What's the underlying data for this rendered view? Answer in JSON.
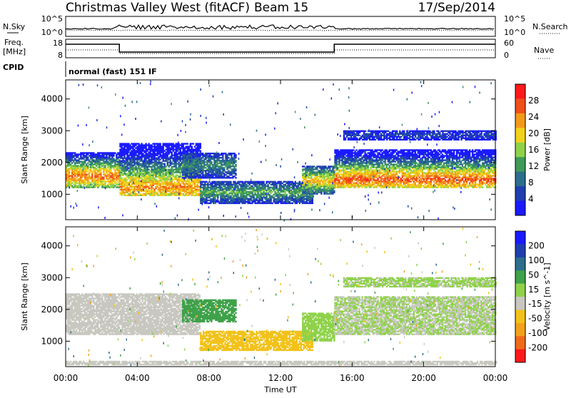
{
  "header": {
    "station": "Christmas Valley West (fitACF)",
    "beam": "Beam 15",
    "date": "17/Sep/2014"
  },
  "summary_panel": {
    "nsky_label": "N.Sky",
    "nsearch_label": "N.Search",
    "nsky_ticks": [
      "10^5",
      "10^0"
    ],
    "nsearch_ticks": [
      "10^5",
      "10^0"
    ],
    "freq_label": "Freq.",
    "freq_unit": "[MHz]",
    "freq_ticks": [
      "18",
      "8"
    ],
    "nave_label": "Nave",
    "nave_ticks": [
      "60",
      "0"
    ],
    "cpid_label": "CPID",
    "cpid_value": "normal (fast) 151 IF"
  },
  "colors": {
    "power_scale": [
      "#1a1aff",
      "#1f3fb0",
      "#2c6e8c",
      "#3f9a5a",
      "#8fd24a",
      "#f2d21a",
      "#f29a1a",
      "#f0501a",
      "#ff1a1a"
    ],
    "velocity_scale": [
      "#1a1aff",
      "#1f3fb0",
      "#2c6e8c",
      "#3fa24a",
      "#8fd24a",
      "#c8c8c0",
      "#f2c21a",
      "#f2a21a",
      "#f06a1a",
      "#ff1a1a"
    ],
    "line": "#000000"
  },
  "chart_data": [
    {
      "type": "heatmap",
      "panel": "power",
      "xlabel": "Time UT",
      "ylabel": "Slant Range [km]",
      "x_ticks": [
        "00:00",
        "04:00",
        "08:00",
        "12:00",
        "16:00",
        "20:00",
        "00:00"
      ],
      "y_ticks": [
        "1000",
        "2000",
        "3000",
        "4000"
      ],
      "xlim": [
        0,
        24
      ],
      "ylim": [
        200,
        4600
      ],
      "colorbar": {
        "label": "Power [dB]",
        "ticks": [
          "28",
          "24",
          "20",
          "16",
          "12",
          "8",
          "4"
        ],
        "range": [
          0,
          32
        ]
      },
      "bands": [
        {
          "t_start": 0.0,
          "t_end": 3.0,
          "r_low": 1200,
          "r_high": 2300,
          "peak_r": 1550,
          "level": 26
        },
        {
          "t_start": 3.0,
          "t_end": 7.5,
          "r_low": 950,
          "r_high": 2600,
          "peak_r": 1200,
          "level": 24
        },
        {
          "t_start": 6.5,
          "t_end": 9.5,
          "r_low": 1500,
          "r_high": 2300,
          "peak_r": 1900,
          "level": 12
        },
        {
          "t_start": 7.5,
          "t_end": 13.8,
          "r_low": 700,
          "r_high": 1400,
          "peak_r": 1050,
          "level": 14
        },
        {
          "t_start": 13.2,
          "t_end": 15.0,
          "r_low": 1000,
          "r_high": 1900,
          "peak_r": 1400,
          "level": 22
        },
        {
          "t_start": 15.0,
          "t_end": 24.0,
          "r_low": 1200,
          "r_high": 2400,
          "peak_r": 1450,
          "level": 27
        },
        {
          "t_start": 15.5,
          "t_end": 24.0,
          "r_low": 2700,
          "r_high": 3000,
          "peak_r": 2850,
          "level": 6
        }
      ]
    },
    {
      "type": "heatmap",
      "panel": "velocity",
      "xlabel": "Time UT",
      "ylabel": "Slant Range [km]",
      "x_ticks": [
        "00:00",
        "04:00",
        "08:00",
        "12:00",
        "16:00",
        "20:00",
        "00:00"
      ],
      "y_ticks": [
        "1000",
        "2000",
        "3000",
        "4000"
      ],
      "xlim": [
        0,
        24
      ],
      "ylim": [
        200,
        4600
      ],
      "colorbar": {
        "label": "Velocity [m s^-1]",
        "ticks": [
          "200",
          "100",
          "50",
          "15",
          "-15",
          "-50",
          "-100",
          "-200"
        ],
        "range": [
          -250,
          250
        ]
      },
      "bands": [
        {
          "t_start": 0.0,
          "t_end": 7.5,
          "r_low": 1200,
          "r_high": 2500,
          "velocity": -30
        },
        {
          "t_start": 6.5,
          "t_end": 9.5,
          "r_low": 1600,
          "r_high": 2300,
          "velocity": 60
        },
        {
          "t_start": 7.5,
          "t_end": 13.8,
          "r_low": 700,
          "r_high": 1300,
          "velocity": -60
        },
        {
          "t_start": 13.2,
          "t_end": 15.0,
          "r_low": 1000,
          "r_high": 1900,
          "velocity": 40
        },
        {
          "t_start": 15.0,
          "t_end": 24.0,
          "r_low": 1200,
          "r_high": 2400,
          "velocity": 0
        },
        {
          "t_start": 15.5,
          "t_end": 24.0,
          "r_low": 2700,
          "r_high": 3000,
          "velocity": 5
        },
        {
          "t_start": 0.0,
          "t_end": 24.0,
          "r_low": 250,
          "r_high": 350,
          "velocity": -40
        }
      ]
    }
  ]
}
